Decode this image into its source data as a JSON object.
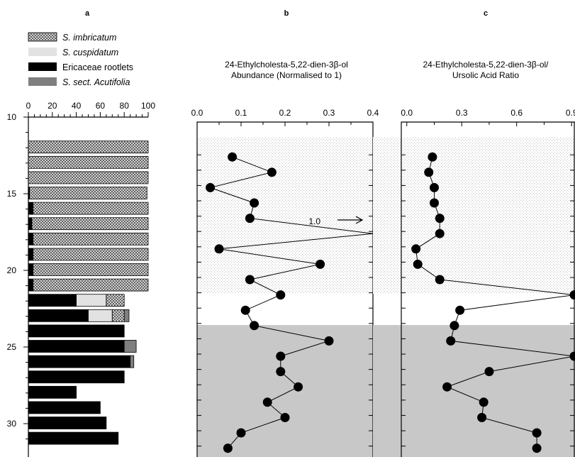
{
  "chart_data": [
    {
      "panel": "a",
      "type": "bar",
      "orientation": "horizontal",
      "stacked": true,
      "x_ticks": [
        "0",
        "20",
        "40",
        "60",
        "80",
        "100"
      ],
      "xlim": [
        0,
        100
      ],
      "y_ticks": [
        "10",
        "15",
        "20",
        "25",
        "30"
      ],
      "ylim": [
        10,
        31.5
      ],
      "legend": [
        {
          "label": "S. imbricatum",
          "pattern": "crosshatch",
          "color": "#9a9a9a"
        },
        {
          "label": "S. cuspidatum",
          "color": "#e2e2e2"
        },
        {
          "label": "Ericaceae rootlets",
          "color": "#000000"
        },
        {
          "label": "S. sect. Acutifolia",
          "color": "#7f7f7f"
        }
      ],
      "depth": [
        12,
        13,
        14,
        15,
        16,
        17,
        18,
        19,
        20,
        21,
        22,
        23,
        24,
        25,
        26,
        27,
        28,
        29,
        30,
        31
      ],
      "series": [
        {
          "name": "Ericaceae rootlets",
          "values": [
            0,
            0,
            0,
            1,
            4,
            3,
            4,
            4,
            4,
            4,
            40,
            50,
            80,
            80,
            85,
            80,
            40,
            60,
            65,
            75
          ]
        },
        {
          "name": "S. cuspidatum",
          "values": [
            0,
            0,
            0,
            0,
            0,
            0,
            0,
            0,
            0,
            0,
            25,
            20,
            0,
            0,
            0,
            0,
            0,
            0,
            0,
            0
          ]
        },
        {
          "name": "S. imbricatum",
          "values": [
            100,
            100,
            100,
            98,
            96,
            97,
            96,
            96,
            96,
            96,
            15,
            10,
            0,
            0,
            0,
            0,
            0,
            0,
            0,
            0
          ]
        },
        {
          "name": "S. sect. Acutifolia",
          "values": [
            0,
            0,
            0,
            0,
            0,
            0,
            0,
            0,
            0,
            0,
            0,
            4,
            0,
            10,
            3,
            0,
            0,
            0,
            0,
            0
          ]
        }
      ]
    },
    {
      "panel": "b",
      "type": "line",
      "title": "24-Ethylcholesta-5,22-dien-3β-ol\nAbundance (Normalised to 1)",
      "x_ticks": [
        "0.0",
        "0.1",
        "0.2",
        "0.3",
        "0.4"
      ],
      "xlim": [
        0,
        0.4
      ],
      "annotation": "1.0",
      "depth": [
        12,
        13,
        14,
        15,
        16,
        17,
        18,
        19,
        20,
        21,
        22,
        23,
        24,
        25,
        26,
        27,
        28,
        29,
        30,
        31
      ],
      "values": [
        0.08,
        0.17,
        0.03,
        0.13,
        0.12,
        1.0,
        0.05,
        0.28,
        0.12,
        0.19,
        0.11,
        0.13,
        0.3,
        0.19,
        0.19,
        0.23,
        0.16,
        0.2,
        0.1,
        0.07
      ]
    },
    {
      "panel": "c",
      "type": "line",
      "title": "24-Ethylcholesta-5,22-dien-3β-ol/\nUrsolic Acid Ratio",
      "x_ticks": [
        "0.0",
        "0.3",
        "0.6",
        "0.9"
      ],
      "xlim": [
        -0.03,
        1.0
      ],
      "depth": [
        12,
        13,
        14,
        15,
        16,
        17,
        18,
        19,
        20,
        21,
        22,
        23,
        24,
        25,
        26,
        27,
        28,
        29,
        30,
        31
      ],
      "values": [
        0.14,
        0.12,
        0.15,
        0.15,
        0.18,
        0.18,
        0.05,
        0.06,
        0.18,
        0.96,
        0.29,
        0.26,
        0.24,
        0.98,
        0.45,
        0.22,
        0.42,
        0.41,
        0.71,
        0.71
      ]
    }
  ],
  "panel_labels": [
    "a",
    "b",
    "c"
  ]
}
